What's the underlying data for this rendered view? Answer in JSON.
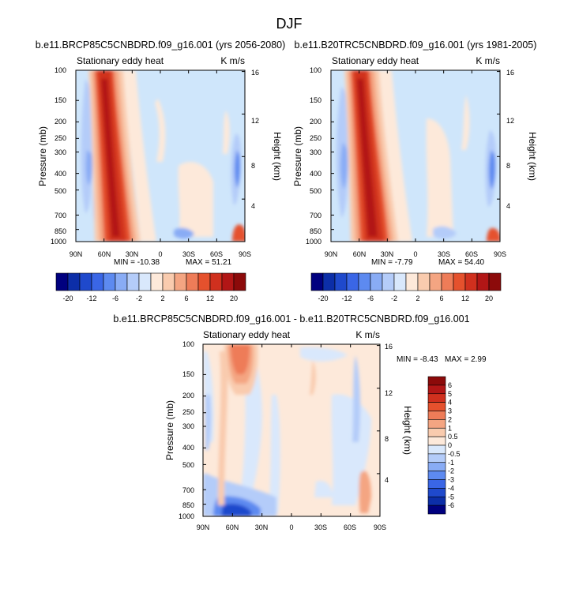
{
  "page_title": "DJF",
  "colors": {
    "background_light_blue": "#cfe6fb",
    "frame": "#000000"
  },
  "chart_data": [
    {
      "type": "heatmap",
      "id": "top-left",
      "title": "b.e11.BRCP85C5CNBDRD.f09_g16.001 (yrs 2056-2080)",
      "subtitle_left": "Stationary eddy heat",
      "subtitle_right": "K m/s",
      "ylabel": "Pressure (mb)",
      "ylabel_right": "Height (km)",
      "x_tick_labels": [
        "90N",
        "60N",
        "30N",
        "0",
        "30S",
        "60S",
        "90S"
      ],
      "x_tick_values": [
        90,
        60,
        30,
        0,
        -30,
        -60,
        -90
      ],
      "y_tick_labels": [
        "100",
        "150",
        "200",
        "250",
        "300",
        "400",
        "500",
        "700",
        "850",
        "1000"
      ],
      "y_tick_values": [
        100,
        150,
        200,
        250,
        300,
        400,
        500,
        700,
        850,
        1000
      ],
      "y_right_tick_labels": [
        "16",
        "12",
        "8",
        "4"
      ],
      "y_right_tick_values": [
        16,
        12,
        8,
        4
      ],
      "xlim": [
        90,
        -90
      ],
      "ylim": [
        1000,
        100
      ],
      "min_label": "MIN = -10.38",
      "max_label": "MAX = 51.21",
      "min": -10.38,
      "max": 51.21
    },
    {
      "type": "heatmap",
      "id": "top-right",
      "title": "b.e11.B20TRC5CNBDRD.f09_g16.001 (yrs 1981-2005)",
      "subtitle_left": "Stationary eddy heat",
      "subtitle_right": "K m/s",
      "ylabel": "Pressure (mb)",
      "ylabel_right": "Height (km)",
      "x_tick_labels": [
        "90N",
        "60N",
        "30N",
        "0",
        "30S",
        "60S",
        "90S"
      ],
      "x_tick_values": [
        90,
        60,
        30,
        0,
        -30,
        -60,
        -90
      ],
      "y_tick_labels": [
        "100",
        "150",
        "200",
        "250",
        "300",
        "400",
        "500",
        "700",
        "850",
        "1000"
      ],
      "y_tick_values": [
        100,
        150,
        200,
        250,
        300,
        400,
        500,
        700,
        850,
        1000
      ],
      "y_right_tick_labels": [
        "16",
        "12",
        "8",
        "4"
      ],
      "y_right_tick_values": [
        16,
        12,
        8,
        4
      ],
      "xlim": [
        90,
        -90
      ],
      "ylim": [
        1000,
        100
      ],
      "min_label": "MIN = -7.79",
      "max_label": "MAX = 54.40",
      "min": -7.79,
      "max": 54.4
    },
    {
      "type": "heatmap",
      "id": "bottom",
      "title": "b.e11.BRCP85C5CNBDRD.f09_g16.001 - b.e11.B20TRC5CNBDRD.f09_g16.001",
      "subtitle_left": "Stationary eddy heat",
      "subtitle_right": "K m/s",
      "ylabel": "Pressure (mb)",
      "ylabel_right": "Height (km)",
      "x_tick_labels": [
        "90N",
        "60N",
        "30N",
        "0",
        "30S",
        "60S",
        "90S"
      ],
      "x_tick_values": [
        90,
        60,
        30,
        0,
        -30,
        -60,
        -90
      ],
      "y_tick_labels": [
        "100",
        "150",
        "200",
        "250",
        "300",
        "400",
        "500",
        "700",
        "850",
        "1000"
      ],
      "y_tick_values": [
        100,
        150,
        200,
        250,
        300,
        400,
        500,
        700,
        850,
        1000
      ],
      "y_right_tick_labels": [
        "16",
        "12",
        "8",
        "4"
      ],
      "y_right_tick_values": [
        16,
        12,
        8,
        4
      ],
      "xlim": [
        90,
        -90
      ],
      "ylim": [
        1000,
        100
      ],
      "min_label": "MIN = -8.43",
      "max_label": "MAX = 2.99",
      "min": -8.43,
      "max": 2.99
    }
  ],
  "colorbar_top": {
    "labels": [
      "-20",
      "-12",
      "-6",
      "-2",
      "2",
      "6",
      "12",
      "20"
    ],
    "colors": [
      "#00007f",
      "#0c2ea8",
      "#1f49cc",
      "#3a66e6",
      "#5d8af0",
      "#89acf5",
      "#b4ccf9",
      "#d9e8fc",
      "#fde9da",
      "#f9cbae",
      "#f4a582",
      "#ee7c58",
      "#e5512d",
      "#d0301e",
      "#b21616",
      "#8c0a0a"
    ]
  },
  "colorbar_bottom": {
    "labels": [
      "6",
      "5",
      "4",
      "3",
      "2",
      "1",
      "0.5",
      "0",
      "-0.5",
      "-1",
      "-2",
      "-3",
      "-4",
      "-5",
      "-6"
    ],
    "colors": [
      "#8c0a0a",
      "#b21616",
      "#d0301e",
      "#e5512d",
      "#ee7c58",
      "#f4a582",
      "#f9cbae",
      "#fde9da",
      "#d9e8fc",
      "#b4ccf9",
      "#89acf5",
      "#5d8af0",
      "#3a66e6",
      "#1f49cc",
      "#0c2ea8",
      "#00007f"
    ]
  }
}
